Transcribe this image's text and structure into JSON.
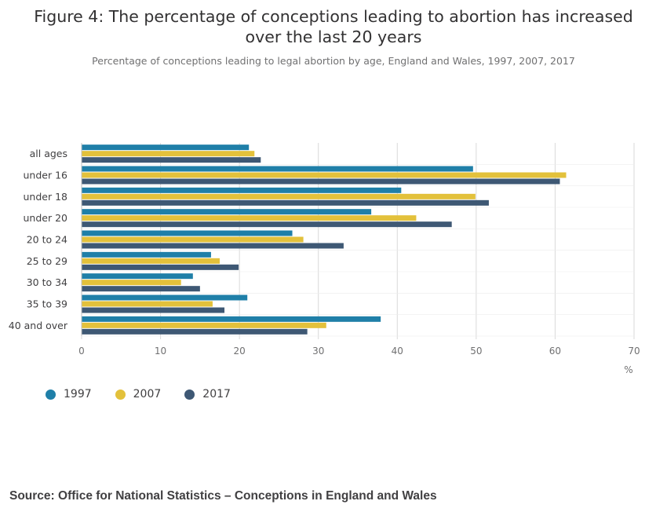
{
  "header": {
    "title_line1": "Figure 4: The percentage of conceptions leading to abortion has increased",
    "title_line2": "over the last 20 years",
    "subtitle": "Percentage of conceptions leading to legal abortion by age, England and Wales, 1997, 2007, 2017"
  },
  "chart_data": {
    "type": "bar",
    "orientation": "horizontal",
    "title": "Figure 4: The percentage of conceptions leading to abortion has increased over the last 20 years",
    "subtitle": "Percentage of conceptions leading to legal abortion by age, England and Wales, 1997, 2007, 2017",
    "categories": [
      "all ages",
      "under 16",
      "under 18",
      "under 20",
      "20 to 24",
      "25 to 29",
      "30 to 34",
      "35 to 39",
      "40 and over"
    ],
    "series": [
      {
        "name": "1997",
        "color": "#1f7fa8",
        "values": [
          21.2,
          49.6,
          40.5,
          36.7,
          26.7,
          16.4,
          14.1,
          21.0,
          37.9
        ]
      },
      {
        "name": "2007",
        "color": "#e3c13b",
        "values": [
          21.9,
          61.4,
          49.9,
          42.4,
          28.1,
          17.5,
          12.6,
          16.6,
          31.0
        ]
      },
      {
        "name": "2017",
        "color": "#3e5874",
        "values": [
          22.7,
          60.6,
          51.6,
          46.9,
          33.2,
          19.9,
          15.0,
          18.1,
          28.6
        ]
      }
    ],
    "xlim": [
      0,
      70
    ],
    "xticks": [
      "0",
      "10",
      "20",
      "30",
      "40",
      "50",
      "60",
      "70"
    ],
    "xlabel": "%",
    "ylabel": "",
    "grid": true,
    "legend_position": "bottom-left"
  },
  "source": "Source: Office for National Statistics – Conceptions in England and Wales"
}
